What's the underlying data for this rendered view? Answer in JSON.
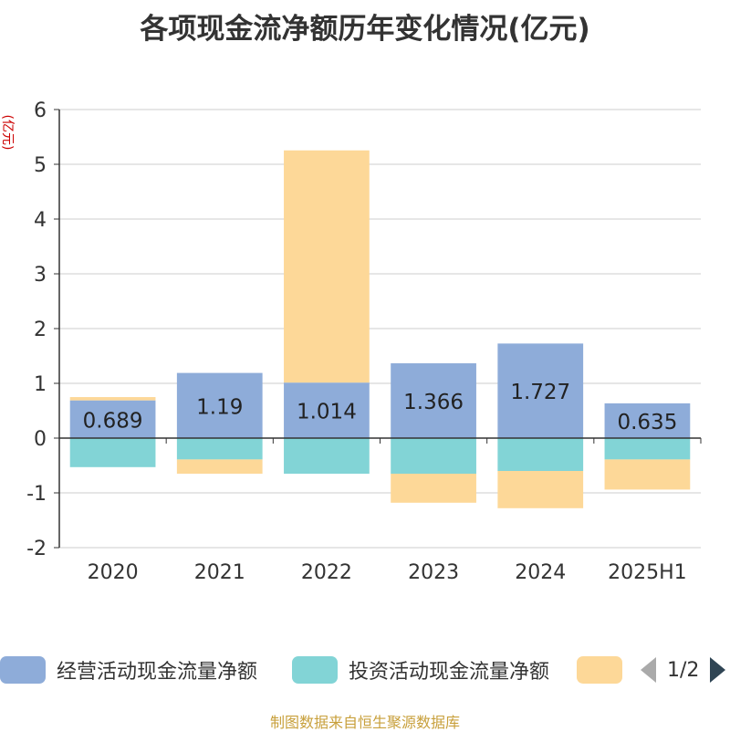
{
  "chart_data": {
    "type": "bar",
    "stacked": true,
    "title": "各项现金流净额历年变化情况(亿元)",
    "ylabel": "(亿元)",
    "categories": [
      "2020",
      "2021",
      "2022",
      "2023",
      "2024",
      "2025H1"
    ],
    "ylim": [
      -2,
      6
    ],
    "yticks": [
      6,
      5,
      4,
      3,
      2,
      1,
      0,
      -1,
      -2
    ],
    "grid": true,
    "series": [
      {
        "name": "经营活动现金流量净额",
        "color": "#8eacd9",
        "values": [
          0.689,
          1.19,
          1.014,
          1.366,
          1.727,
          0.635
        ],
        "show_labels": true
      },
      {
        "name": "投资活动现金流量净额",
        "color": "#82d4d6",
        "values": [
          -0.53,
          -0.39,
          -0.65,
          -0.65,
          -0.6,
          -0.39
        ],
        "show_labels": false
      },
      {
        "name": "",
        "color": "#fdd898",
        "values": [
          0.06,
          -0.26,
          4.24,
          -0.53,
          -0.68,
          -0.55
        ],
        "show_labels": false
      }
    ],
    "legend": {
      "position": "bottom",
      "page": "1/2"
    }
  },
  "source": "制图数据来自恒生聚源数据库"
}
